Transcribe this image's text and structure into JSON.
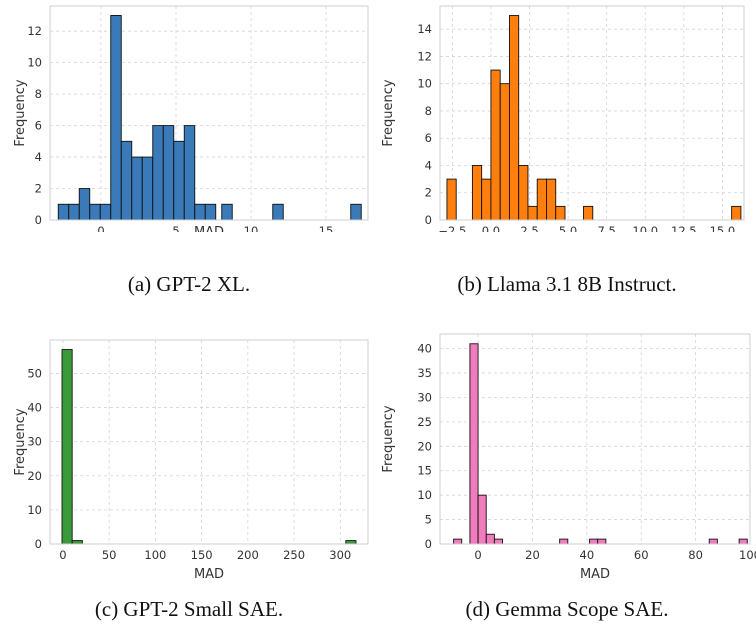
{
  "chart_data": [
    {
      "type": "histogram",
      "caption": "(a) GPT-2 XL.",
      "xlabel": "MAD",
      "ylabel": "Frequency",
      "color": "#3a7ab8",
      "xlim": [
        -3.4,
        17.8
      ],
      "ylim": [
        0,
        13.6
      ],
      "xticks": [
        0,
        5,
        10,
        15
      ],
      "xtick_labels": [
        "0",
        "5",
        "10",
        "15"
      ],
      "yticks": [
        0,
        2,
        4,
        6,
        8,
        10,
        12
      ],
      "ytick_labels": [
        "0",
        "2",
        "4",
        "6",
        "8",
        "10",
        "12"
      ],
      "grid": true,
      "bins": [
        {
          "x0": -2.85,
          "x1": -2.15,
          "count": 1
        },
        {
          "x0": -2.15,
          "x1": -1.45,
          "count": 1
        },
        {
          "x0": -1.45,
          "x1": -0.75,
          "count": 2
        },
        {
          "x0": -0.75,
          "x1": -0.05,
          "count": 1
        },
        {
          "x0": -0.05,
          "x1": 0.65,
          "count": 1
        },
        {
          "x0": 0.65,
          "x1": 1.35,
          "count": 13
        },
        {
          "x0": 1.35,
          "x1": 2.05,
          "count": 5
        },
        {
          "x0": 2.05,
          "x1": 2.75,
          "count": 4
        },
        {
          "x0": 2.75,
          "x1": 3.45,
          "count": 4
        },
        {
          "x0": 3.45,
          "x1": 4.15,
          "count": 6
        },
        {
          "x0": 4.15,
          "x1": 4.85,
          "count": 6
        },
        {
          "x0": 4.85,
          "x1": 5.55,
          "count": 5
        },
        {
          "x0": 5.55,
          "x1": 6.25,
          "count": 6
        },
        {
          "x0": 6.25,
          "x1": 6.95,
          "count": 1
        },
        {
          "x0": 6.95,
          "x1": 7.65,
          "count": 1
        },
        {
          "x0": 8.05,
          "x1": 8.75,
          "count": 1
        },
        {
          "x0": 11.45,
          "x1": 12.15,
          "count": 1
        },
        {
          "x0": 16.65,
          "x1": 17.35,
          "count": 1
        }
      ]
    },
    {
      "type": "histogram",
      "caption": "(b) Llama 3.1 8B Instruct.",
      "xlabel": "MAD",
      "ylabel": "Frequency",
      "color": "#ff7f0e",
      "xlim": [
        -3.3,
        16.4
      ],
      "ylim": [
        0,
        15.7
      ],
      "xticks": [
        -2.5,
        0.0,
        2.5,
        5.0,
        7.5,
        10.0,
        12.5,
        15.0
      ],
      "xtick_labels": [
        "−2.5",
        "0.0",
        "2.5",
        "5.0",
        "7.5",
        "10.0",
        "12.5",
        "15.0"
      ],
      "yticks": [
        0,
        2,
        4,
        6,
        8,
        10,
        12,
        14
      ],
      "ytick_labels": [
        "0",
        "2",
        "4",
        "6",
        "8",
        "10",
        "12",
        "14"
      ],
      "grid": true,
      "bins": [
        {
          "x0": -2.85,
          "x1": -2.25,
          "count": 3
        },
        {
          "x0": -1.2,
          "x1": -0.6,
          "count": 4
        },
        {
          "x0": -0.6,
          "x1": 0.0,
          "count": 3
        },
        {
          "x0": 0.0,
          "x1": 0.6,
          "count": 11
        },
        {
          "x0": 0.6,
          "x1": 1.2,
          "count": 10
        },
        {
          "x0": 1.2,
          "x1": 1.8,
          "count": 15
        },
        {
          "x0": 1.8,
          "x1": 2.4,
          "count": 4
        },
        {
          "x0": 2.4,
          "x1": 3.0,
          "count": 1
        },
        {
          "x0": 3.0,
          "x1": 3.6,
          "count": 3
        },
        {
          "x0": 3.6,
          "x1": 4.2,
          "count": 3
        },
        {
          "x0": 4.2,
          "x1": 4.8,
          "count": 1
        },
        {
          "x0": 6.0,
          "x1": 6.6,
          "count": 1
        },
        {
          "x0": 15.6,
          "x1": 16.2,
          "count": 1
        }
      ]
    },
    {
      "type": "histogram",
      "caption": "(c) GPT-2 Small SAE.",
      "xlabel": "MAD",
      "ylabel": "Frequency",
      "color": "#3a9a3a",
      "xlim": [
        -14,
        330
      ],
      "ylim": [
        0,
        59.8
      ],
      "xticks": [
        0,
        50,
        100,
        150,
        200,
        250,
        300
      ],
      "xtick_labels": [
        "0",
        "50",
        "100",
        "150",
        "200",
        "250",
        "300"
      ],
      "yticks": [
        0,
        10,
        20,
        30,
        40,
        50
      ],
      "ytick_labels": [
        "0",
        "10",
        "20",
        "30",
        "40",
        "50"
      ],
      "grid": true,
      "bins": [
        {
          "x0": -1,
          "x1": 10,
          "count": 57
        },
        {
          "x0": 10,
          "x1": 21,
          "count": 1
        },
        {
          "x0": 306,
          "x1": 317,
          "count": 1
        }
      ]
    },
    {
      "type": "histogram",
      "caption": "(d) Gemma Scope SAE.",
      "xlabel": "MAD",
      "ylabel": "Frequency",
      "color": "#f07bbd",
      "xlim": [
        -14,
        100
      ],
      "ylim": [
        0,
        43
      ],
      "xticks": [
        0,
        20,
        40,
        60,
        80,
        100
      ],
      "xtick_labels": [
        "0",
        "20",
        "40",
        "60",
        "80",
        "100"
      ],
      "yticks": [
        0,
        5,
        10,
        15,
        20,
        25,
        30,
        35,
        40
      ],
      "ytick_labels": [
        "0",
        "5",
        "10",
        "15",
        "20",
        "25",
        "30",
        "35",
        "40"
      ],
      "grid": true,
      "bins": [
        {
          "x0": -9,
          "x1": -6,
          "count": 1
        },
        {
          "x0": -3,
          "x1": 0,
          "count": 41
        },
        {
          "x0": 0,
          "x1": 3,
          "count": 10
        },
        {
          "x0": 3,
          "x1": 6,
          "count": 2
        },
        {
          "x0": 6,
          "x1": 9,
          "count": 1
        },
        {
          "x0": 30,
          "x1": 33,
          "count": 1
        },
        {
          "x0": 41,
          "x1": 44,
          "count": 1
        },
        {
          "x0": 44,
          "x1": 47,
          "count": 1
        },
        {
          "x0": 85,
          "x1": 88,
          "count": 1
        },
        {
          "x0": 96,
          "x1": 99,
          "count": 1
        }
      ]
    }
  ]
}
